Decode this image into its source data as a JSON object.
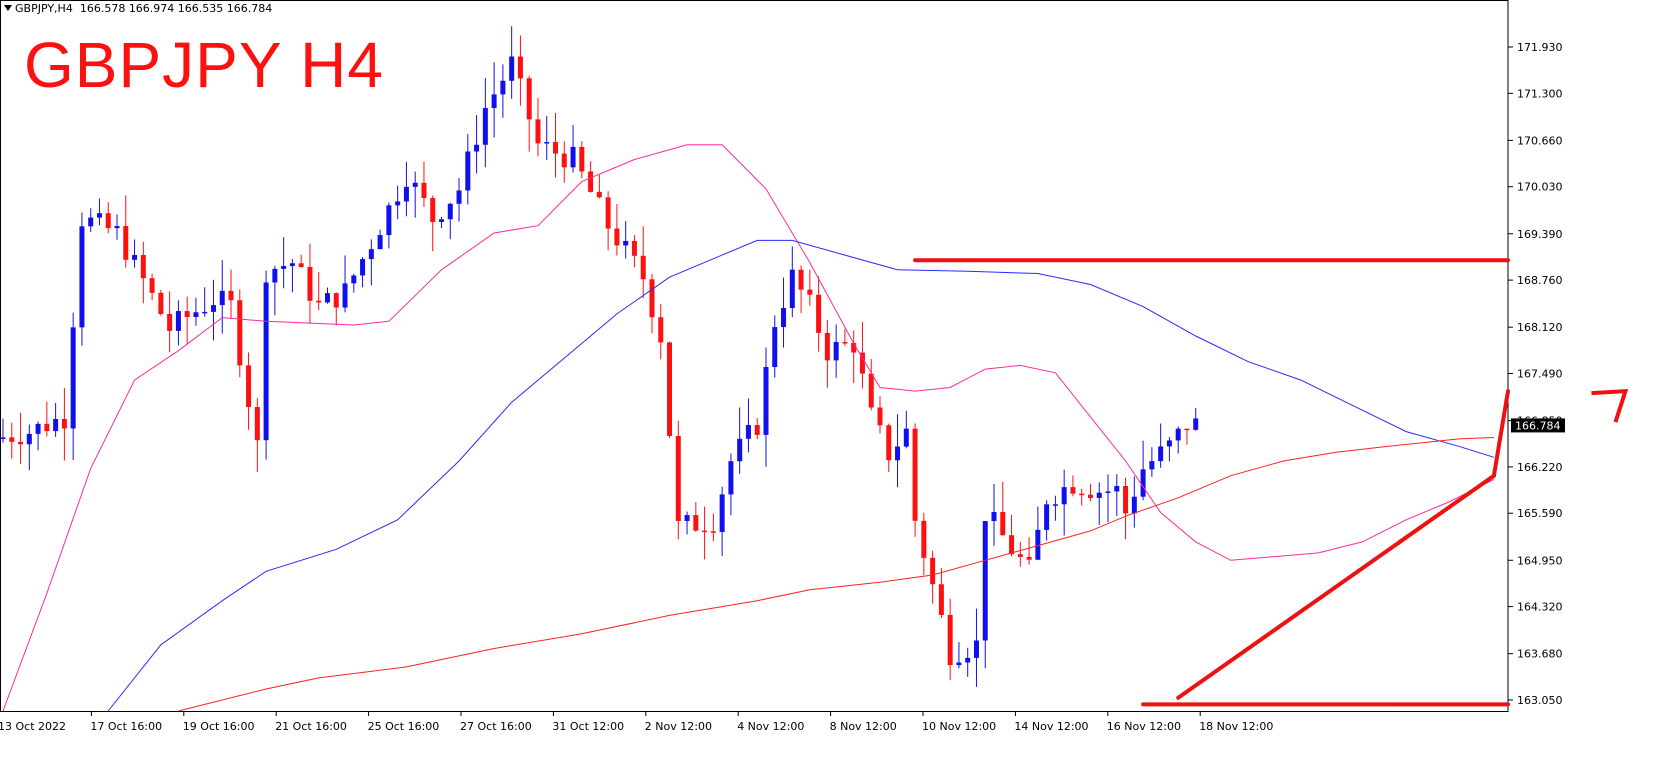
{
  "header": {
    "symbol": "GBPJPY,H4",
    "quote": "166.578 166.974 166.535 166.784"
  },
  "overlay_title": "GBPJPY H4",
  "colors": {
    "bull": "#1010ee",
    "bear": "#ff1010",
    "ma_fast": "#ff2aa0",
    "ma_mid": "#2a2aff",
    "ma_slow": "#ff2020",
    "drawing": "#ee1111",
    "price_tag_bg": "#000000"
  },
  "chart_data": {
    "type": "candlestick",
    "symbol": "GBPJPY",
    "timeframe": "H4",
    "ylim": [
      162.92,
      172.35
    ],
    "y_ticks": [
      "171.930",
      "171.300",
      "170.660",
      "170.030",
      "169.390",
      "168.760",
      "168.120",
      "167.490",
      "166.850",
      "166.220",
      "165.590",
      "164.950",
      "164.320",
      "163.680",
      "163.050"
    ],
    "x_labels": [
      "13 Oct 2022",
      "17 Oct 16:00",
      "19 Oct 16:00",
      "21 Oct 16:00",
      "25 Oct 16:00",
      "27 Oct 16:00",
      "31 Oct 12:00",
      "2 Nov 12:00",
      "4 Nov 12:00",
      "8 Nov 12:00",
      "10 Nov 12:00",
      "14 Nov 12:00",
      "16 Nov 12:00",
      "18 Nov 12:00"
    ],
    "current_price": "166.784",
    "moving_averages": [
      {
        "role": "fast",
        "color": "magenta",
        "points": [
          [
            0,
            162.9
          ],
          [
            5,
            164.5
          ],
          [
            10,
            166.2
          ],
          [
            15,
            167.4
          ],
          [
            20,
            167.8
          ],
          [
            25,
            168.25
          ],
          [
            30,
            168.2
          ],
          [
            40,
            168.15
          ],
          [
            44,
            168.2
          ],
          [
            50,
            168.9
          ],
          [
            56,
            169.4
          ],
          [
            61,
            169.5
          ],
          [
            66,
            170.1
          ],
          [
            72,
            170.4
          ],
          [
            78,
            170.6
          ],
          [
            82,
            170.6
          ],
          [
            87,
            170.0
          ],
          [
            92,
            169.0
          ],
          [
            97,
            167.9
          ],
          [
            100,
            167.3
          ],
          [
            104,
            167.25
          ],
          [
            108,
            167.3
          ],
          [
            112,
            167.55
          ],
          [
            116,
            167.6
          ],
          [
            120,
            167.5
          ],
          [
            124,
            166.9
          ],
          [
            128,
            166.3
          ],
          [
            132,
            165.6
          ],
          [
            136,
            165.2
          ],
          [
            140,
            164.95
          ],
          [
            145,
            165.0
          ],
          [
            150,
            165.05
          ],
          [
            155,
            165.2
          ],
          [
            160,
            165.5
          ],
          [
            165,
            165.75
          ],
          [
            170,
            166.05
          ]
        ]
      },
      {
        "role": "mid",
        "color": "blue",
        "points": [
          [
            12,
            162.9
          ],
          [
            18,
            163.8
          ],
          [
            25,
            164.4
          ],
          [
            30,
            164.8
          ],
          [
            38,
            165.1
          ],
          [
            45,
            165.5
          ],
          [
            52,
            166.3
          ],
          [
            58,
            167.1
          ],
          [
            64,
            167.7
          ],
          [
            70,
            168.3
          ],
          [
            76,
            168.8
          ],
          [
            82,
            169.1
          ],
          [
            86,
            169.3
          ],
          [
            90,
            169.3
          ],
          [
            96,
            169.1
          ],
          [
            102,
            168.9
          ],
          [
            110,
            168.88
          ],
          [
            118,
            168.85
          ],
          [
            124,
            168.7
          ],
          [
            130,
            168.4
          ],
          [
            136,
            168.0
          ],
          [
            142,
            167.65
          ],
          [
            148,
            167.4
          ],
          [
            154,
            167.05
          ],
          [
            160,
            166.7
          ],
          [
            166,
            166.5
          ],
          [
            170,
            166.35
          ]
        ]
      },
      {
        "role": "slow",
        "color": "red",
        "points": [
          [
            20,
            162.9
          ],
          [
            30,
            163.2
          ],
          [
            36,
            163.35
          ],
          [
            46,
            163.5
          ],
          [
            56,
            163.75
          ],
          [
            66,
            163.95
          ],
          [
            76,
            164.2
          ],
          [
            86,
            164.4
          ],
          [
            92,
            164.55
          ],
          [
            100,
            164.65
          ],
          [
            106,
            164.75
          ],
          [
            112,
            164.95
          ],
          [
            118,
            165.15
          ],
          [
            124,
            165.35
          ],
          [
            128,
            165.55
          ],
          [
            134,
            165.8
          ],
          [
            140,
            166.1
          ],
          [
            146,
            166.3
          ],
          [
            152,
            166.42
          ],
          [
            158,
            166.5
          ],
          [
            162,
            166.55
          ],
          [
            166,
            166.6
          ],
          [
            170,
            166.62
          ]
        ]
      }
    ],
    "trendlines": [
      {
        "name": "resistance",
        "from": [
          104,
          169.03
        ],
        "to": [
          223,
          169.03
        ]
      },
      {
        "name": "support",
        "from": [
          130,
          162.99
        ],
        "to": [
          223,
          162.99
        ]
      },
      {
        "name": "rising-trendline",
        "from": [
          134,
          163.08
        ],
        "to": [
          170,
          166.1
        ]
      },
      {
        "name": "arrow",
        "from": [
          170,
          166.1
        ],
        "to": [
          185,
          167.25
        ]
      }
    ]
  }
}
